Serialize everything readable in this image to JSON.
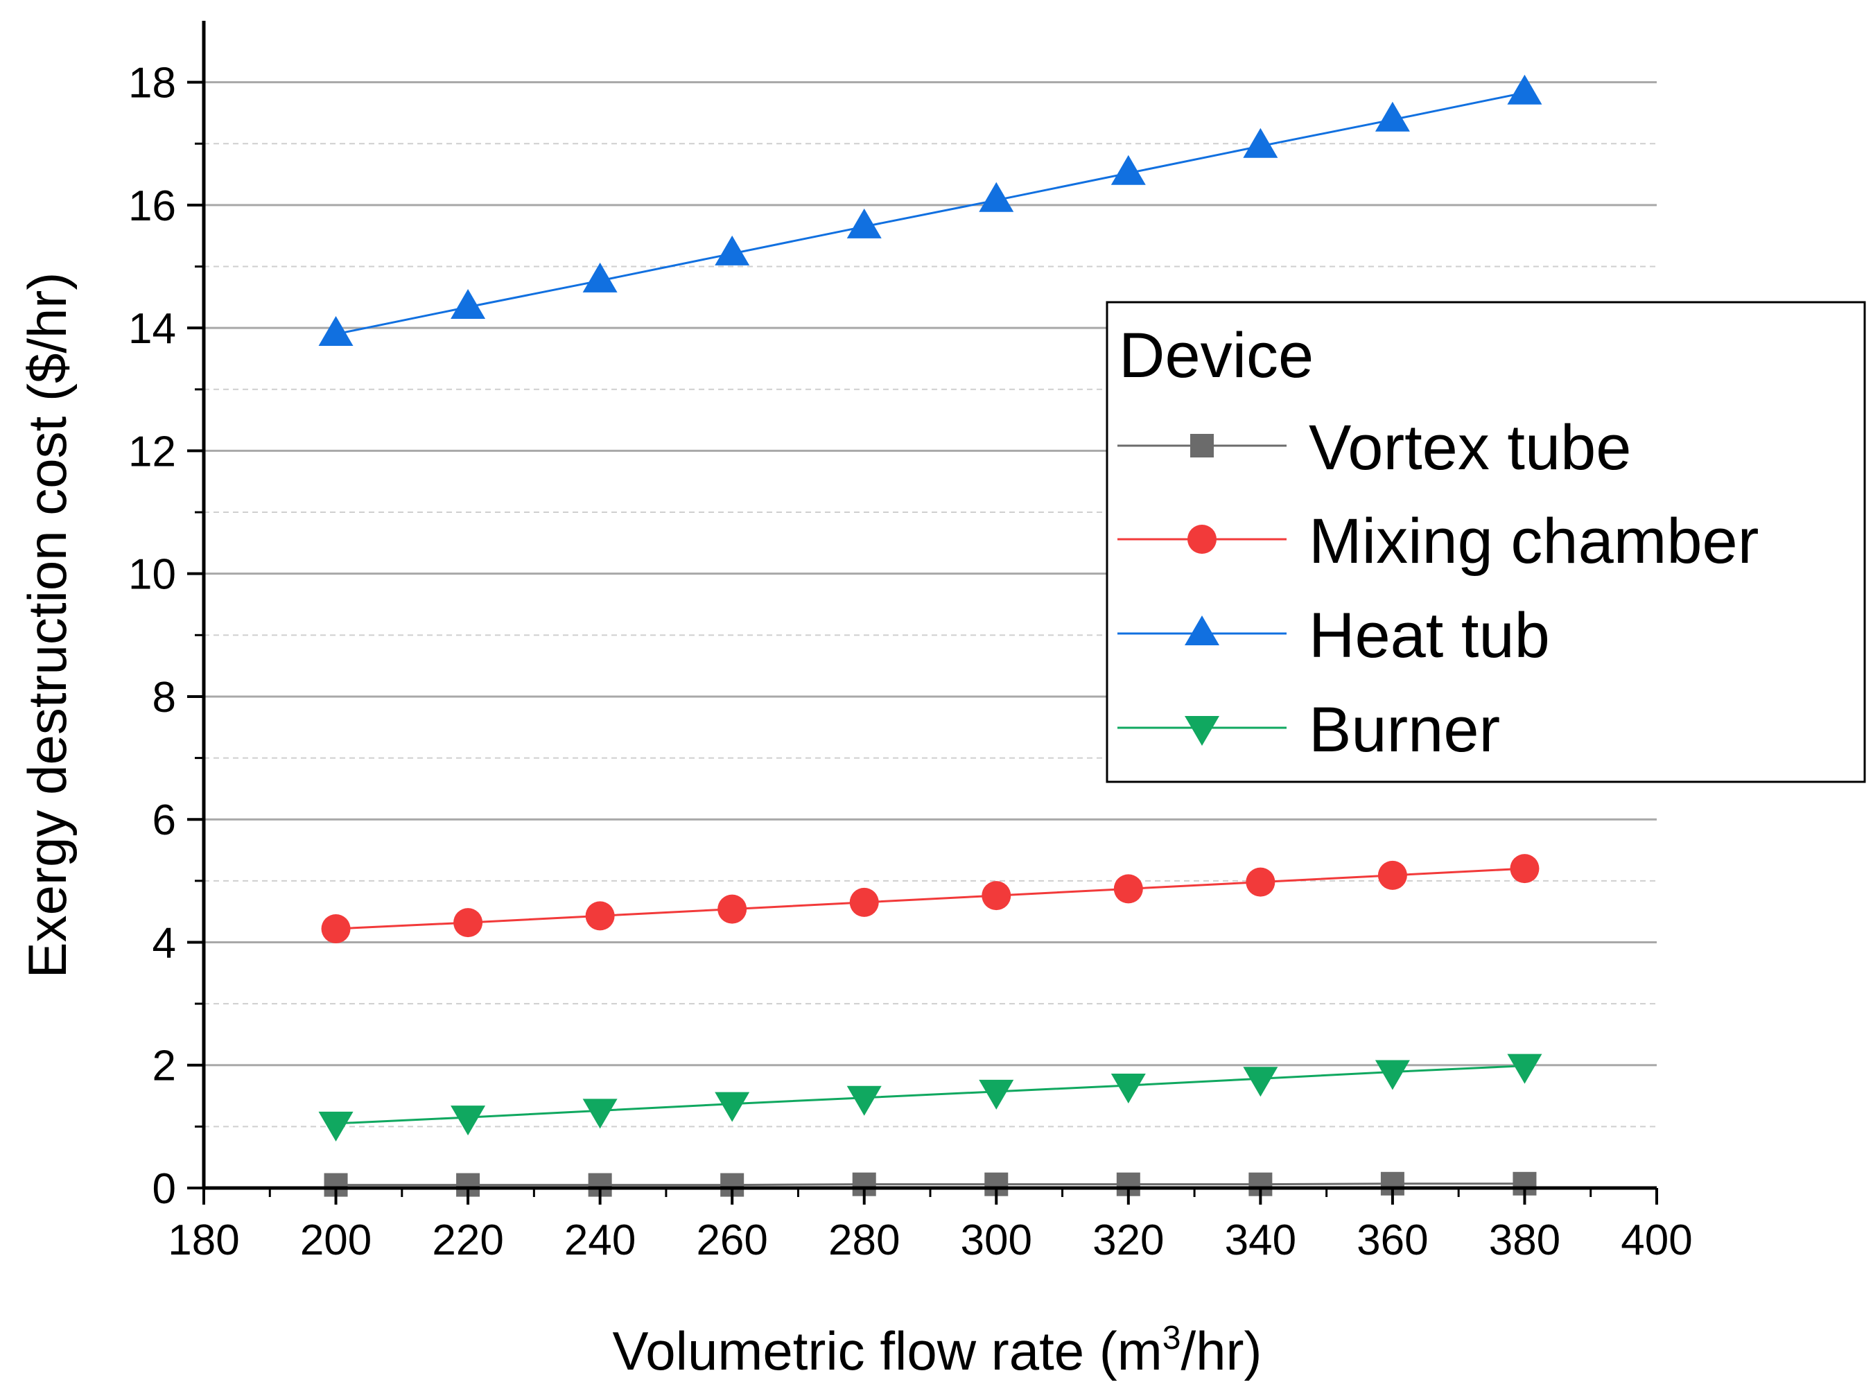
{
  "chart_data": {
    "type": "line",
    "title": "",
    "xlabel": "Volumetric flow rate (m",
    "xlabel_sup": "3",
    "xlabel_suffix": "/hr)",
    "ylabel": "Exergy destruction cost ($/hr)",
    "xlim": [
      180,
      400
    ],
    "ylim": [
      0,
      19
    ],
    "xticks": [
      180,
      200,
      220,
      240,
      260,
      280,
      300,
      320,
      340,
      360,
      380,
      400
    ],
    "yticks": [
      0,
      2,
      4,
      6,
      8,
      10,
      12,
      14,
      16,
      18
    ],
    "grid": true,
    "legend_position": "right",
    "legend_title": "Device",
    "x": [
      200,
      220,
      240,
      260,
      280,
      300,
      320,
      340,
      360,
      380
    ],
    "series": [
      {
        "name": "Vortex tube",
        "marker": "square",
        "color": "#6b6b6b",
        "values": [
          0.05,
          0.05,
          0.05,
          0.05,
          0.06,
          0.06,
          0.06,
          0.06,
          0.07,
          0.07
        ]
      },
      {
        "name": "Mixing chamber",
        "marker": "circle",
        "color": "#f23a3a",
        "values": [
          4.22,
          4.32,
          4.43,
          4.54,
          4.65,
          4.76,
          4.87,
          4.98,
          5.09,
          5.2
        ]
      },
      {
        "name": "Heat tub",
        "marker": "triangle-up",
        "color": "#1170e0",
        "values": [
          13.9,
          14.34,
          14.77,
          15.21,
          15.65,
          16.08,
          16.52,
          16.96,
          17.39,
          17.83
        ]
      },
      {
        "name": "Burner",
        "marker": "triangle-down",
        "color": "#10a860",
        "values": [
          1.05,
          1.15,
          1.26,
          1.37,
          1.47,
          1.57,
          1.67,
          1.78,
          1.89,
          1.99
        ]
      }
    ]
  }
}
